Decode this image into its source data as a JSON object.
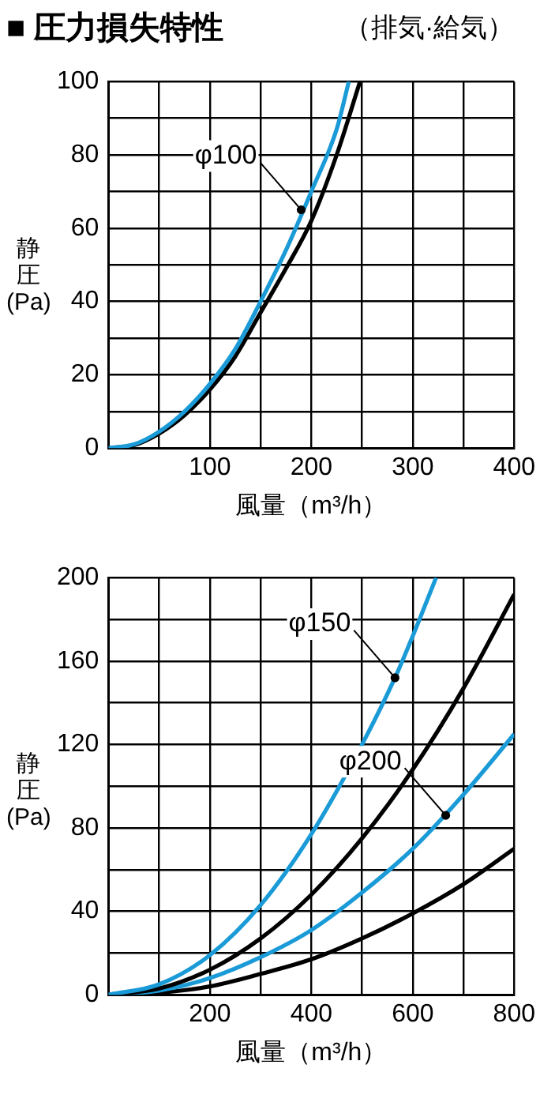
{
  "chart_data": [
    {
      "type": "line",
      "title": "■ 圧力損失特性",
      "subtitle": "（排気·給気）",
      "xlabel": "風量（m³/h）",
      "ylabel": "静圧(Pa)",
      "grid": true,
      "legend": false,
      "marker": "none",
      "line_style": "solid",
      "xlim": [
        0,
        400
      ],
      "ylim": [
        0,
        100
      ],
      "xticks": [
        {
          "value": 0,
          "label": null
        },
        {
          "value": 50,
          "label": null
        },
        100,
        {
          "value": 150,
          "label": null
        },
        200,
        {
          "value": 250,
          "label": null
        },
        300,
        {
          "value": 350,
          "label": null
        },
        400
      ],
      "yticks": [
        0,
        {
          "value": 10,
          "label": null
        },
        20,
        {
          "value": 30,
          "label": null
        },
        40,
        {
          "value": 50,
          "label": null
        },
        60,
        {
          "value": 70,
          "label": null
        },
        80,
        {
          "value": 90,
          "label": null
        },
        100
      ],
      "series": [
        {
          "color": "#1a9bd7",
          "x": [
            0,
            25,
            50,
            75,
            100,
            125,
            150,
            175,
            200,
            225,
            237
          ],
          "values": [
            0,
            1,
            4.5,
            10,
            17.5,
            27,
            40,
            54,
            70,
            87,
            100
          ]
        },
        {
          "color": "#000000",
          "x": [
            0,
            25,
            50,
            75,
            100,
            125,
            150,
            175,
            200,
            225,
            248
          ],
          "values": [
            0,
            0.8,
            4,
            9,
            16,
            25,
            37,
            49,
            62,
            80,
            100
          ]
        }
      ],
      "annotations": [
        {
          "text": "φ100",
          "x": 190,
          "y": 65
        }
      ]
    },
    {
      "type": "line",
      "xlabel": "風量（m³/h）",
      "ylabel": "静圧(Pa)",
      "grid": true,
      "legend": false,
      "marker": "none",
      "line_style": "solid",
      "xlim": [
        0,
        800
      ],
      "ylim": [
        0,
        200
      ],
      "xticks": [
        {
          "value": 0,
          "label": null
        },
        {
          "value": 100,
          "label": null
        },
        200,
        {
          "value": 300,
          "label": null
        },
        400,
        {
          "value": 500,
          "label": null
        },
        600,
        {
          "value": 700,
          "label": null
        },
        800
      ],
      "yticks": [
        0,
        {
          "value": 20,
          "label": null
        },
        40,
        {
          "value": 60,
          "label": null
        },
        80,
        {
          "value": 100,
          "label": null
        },
        120,
        {
          "value": 140,
          "label": null
        },
        160,
        {
          "value": 180,
          "label": null
        },
        200
      ],
      "series": [
        {
          "color": "#1a9bd7",
          "x": [
            0,
            100,
            200,
            300,
            400,
            500,
            565,
            600,
            646
          ],
          "values": [
            0,
            5,
            19,
            43,
            77,
            120,
            152,
            172,
            200
          ]
        },
        {
          "color": "#000000",
          "x": [
            0,
            100,
            200,
            300,
            400,
            500,
            600,
            700,
            800
          ],
          "values": [
            0,
            3,
            12,
            27,
            48,
            75,
            108,
            147,
            192
          ]
        },
        {
          "color": "#1a9bd7",
          "x": [
            0,
            100,
            200,
            300,
            400,
            500,
            600,
            700,
            800
          ],
          "values": [
            0,
            2,
            8,
            18,
            31,
            49,
            70,
            96,
            125
          ]
        },
        {
          "color": "#000000",
          "x": [
            0,
            100,
            200,
            300,
            400,
            500,
            600,
            700,
            800
          ],
          "values": [
            0,
            1,
            4,
            10,
            17,
            27,
            39,
            53,
            70
          ]
        }
      ],
      "annotations": [
        {
          "text": "φ150",
          "x": 565,
          "y": 152
        },
        {
          "text": "φ200",
          "x": 665,
          "y": 86
        }
      ]
    }
  ]
}
